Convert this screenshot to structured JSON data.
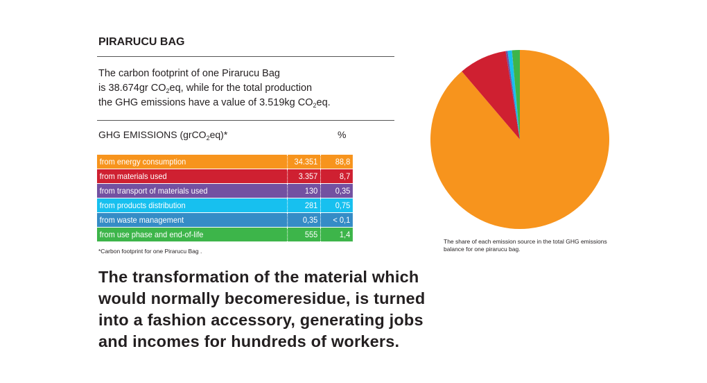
{
  "title": "PIRARUCU BAG",
  "intro": {
    "l1": "The carbon footprint of one Pirarucu Bag",
    "l2a": "is 38.674gr CO",
    "l2b": "2",
    "l2c": "eq, while for the total production",
    "l3a": "the GHG emissions have a value of 3.519kg CO",
    "l3b": "2",
    "l3c": "eq."
  },
  "table_header": {
    "a": "GHG EMISSIONS (grCO",
    "b": "2",
    "c": "eq)*",
    "pct": "%"
  },
  "rows": [
    {
      "label": "from energy consumption",
      "value": "34.351",
      "pct": "88,8",
      "color": "#f7941d"
    },
    {
      "label": "from materials used",
      "value": "3.357",
      "pct": "8,7",
      "color": "#cf2031"
    },
    {
      "label": "from transport of materials used",
      "value": "130",
      "pct": "0,35",
      "color": "#7351a1"
    },
    {
      "label": "from products distribution",
      "value": "281",
      "pct": "0,75",
      "color": "#17c0ef"
    },
    {
      "label": "from waste management",
      "value": "0,35",
      "pct": "< 0,1",
      "color": "#358cc6"
    },
    {
      "label": "from use phase and end-of-life",
      "value": "555",
      "pct": "1,4",
      "color": "#3db54a"
    }
  ],
  "footnote": "*Carbon footprint for one Pirarucu Bag  .",
  "statement": "The transformation of the material which would normally becomeresidue, is turned into a fashion accessory, generating jobs and incomes for hundreds of workers.",
  "chart_data": {
    "type": "pie",
    "caption": "The share of each emission source in the total GHG emissions balance for one pirarucu bag.",
    "categories": [
      "from energy consumption",
      "from materials used",
      "from transport of materials used",
      "from products distribution",
      "from waste management",
      "from use phase and end-of-life"
    ],
    "values": [
      88.8,
      8.7,
      0.35,
      0.75,
      0.05,
      1.4
    ],
    "colors": [
      "#f7941d",
      "#cf2031",
      "#7351a1",
      "#17c0ef",
      "#358cc6",
      "#3db54a"
    ]
  }
}
